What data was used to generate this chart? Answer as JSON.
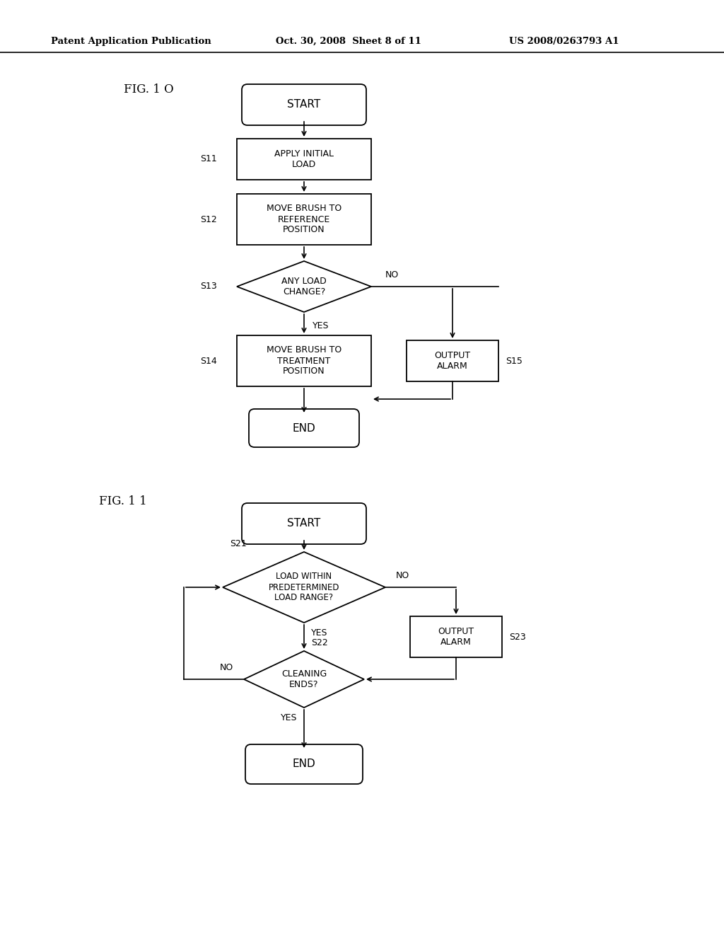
{
  "bg_color": "#ffffff",
  "header_left": "Patent Application Publication",
  "header_mid": "Oct. 30, 2008  Sheet 8 of 11",
  "header_right": "US 2008/0263793 A1",
  "fig1_label": "FIG. 1 O",
  "fig2_label": "FIG. 1 1"
}
